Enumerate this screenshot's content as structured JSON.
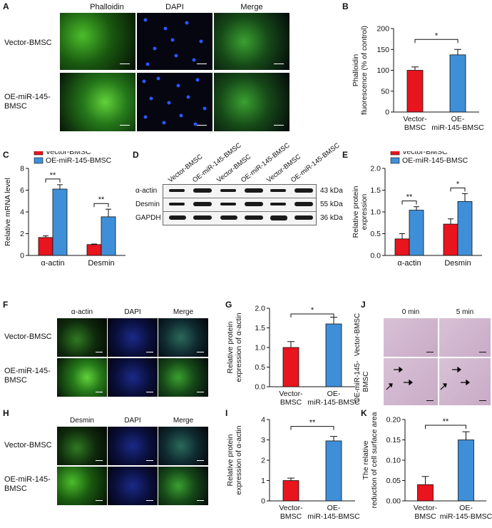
{
  "panels": {
    "A": "A",
    "B": "B",
    "C": "C",
    "D": "D",
    "E": "E",
    "F": "F",
    "G": "G",
    "H": "H",
    "I": "I",
    "J": "J",
    "K": "K"
  },
  "panel_a": {
    "columns": [
      "Phalloidin",
      "DAPI",
      "Merge"
    ],
    "rows": [
      "Vector-BMSC",
      "OE-miR-145-BMSC"
    ]
  },
  "panel_d": {
    "lanes": [
      "Vector-BMSC",
      "OE-miR-145-BMSC",
      "Vector-BMSC",
      "OE-miR-145-BMSC",
      "Vector-BMSC",
      "OE-miR-145-BMSC"
    ],
    "bands": [
      "α-actin",
      "Desmin",
      "GAPDH"
    ],
    "sizes": [
      "43 kDa",
      "55 kDa",
      "36 kDa"
    ]
  },
  "panel_f": {
    "columns": [
      "α-actin",
      "DAPI",
      "Merge"
    ],
    "rows": [
      "Vector-BMSC",
      "OE-miR-145-BMSC"
    ]
  },
  "panel_h": {
    "columns": [
      "Desmin",
      "DAPI",
      "Merge"
    ],
    "rows": [
      "Vector-BMSC",
      "OE-miR-145-BMSC"
    ]
  },
  "panel_j": {
    "columns": [
      "0 min",
      "5 min"
    ],
    "rows": [
      "Vector-BMSC",
      "OE-miR-145-BMSC"
    ]
  },
  "colors": {
    "vector": "#e8141e",
    "oe": "#3f8fd8"
  },
  "chart_data": [
    {
      "id": "B",
      "type": "bar",
      "categories": [
        "Vector-BMSC",
        "OE-miR-145-BMSC"
      ],
      "values": [
        100,
        137
      ],
      "errors": [
        8,
        13
      ],
      "ylabel": "Phalloidin fluorescence (% of control)",
      "ylim": [
        0,
        200
      ],
      "yticks": [
        0,
        50,
        100,
        150,
        200
      ],
      "significance": "*"
    },
    {
      "id": "C",
      "type": "bar",
      "categories": [
        "α-actin",
        "Desmin"
      ],
      "series": [
        {
          "name": "Vector-BMSC",
          "values": [
            1.65,
            1.0
          ],
          "errors": [
            0.15,
            0.05
          ]
        },
        {
          "name": "OE-miR-145-BMSC",
          "values": [
            6.1,
            3.55
          ],
          "errors": [
            0.4,
            0.7
          ]
        }
      ],
      "ylabel": "Relative mRNA level",
      "ylim": [
        0,
        8
      ],
      "yticks": [
        0,
        2,
        4,
        6,
        8
      ],
      "significance": [
        "**",
        "**"
      ],
      "legend": "top-left"
    },
    {
      "id": "E",
      "type": "bar",
      "categories": [
        "α-actin",
        "Desmin"
      ],
      "series": [
        {
          "name": "Vector-BMSC",
          "values": [
            0.38,
            0.72
          ],
          "errors": [
            0.12,
            0.12
          ]
        },
        {
          "name": "OE-miR-145-BMSC",
          "values": [
            1.04,
            1.24
          ],
          "errors": [
            0.08,
            0.18
          ]
        }
      ],
      "ylabel": "Relative protein expression",
      "ylim": [
        0,
        2.0
      ],
      "yticks": [
        0,
        0.5,
        1.0,
        1.5,
        2.0
      ],
      "significance": [
        "**",
        "*"
      ],
      "legend": "top-left"
    },
    {
      "id": "G",
      "type": "bar",
      "categories": [
        "Vector-BMSC",
        "OE-miR-145-BMSC"
      ],
      "values": [
        1.0,
        1.6
      ],
      "errors": [
        0.15,
        0.17
      ],
      "ylabel": "Relative protein expression of α-actin",
      "ylim": [
        0,
        2.0
      ],
      "yticks": [
        0,
        0.5,
        1.0,
        1.5,
        2.0
      ],
      "significance": "*"
    },
    {
      "id": "I",
      "type": "bar",
      "categories": [
        "Vector-BMSC",
        "OE-miR-145-BMSC"
      ],
      "values": [
        1.0,
        2.95
      ],
      "errors": [
        0.12,
        0.22
      ],
      "ylabel": "Relative protein expression of α-actin",
      "ylim": [
        0,
        4
      ],
      "yticks": [
        0,
        1,
        2,
        3,
        4
      ],
      "significance": "**"
    },
    {
      "id": "K",
      "type": "bar",
      "categories": [
        "Vector-BMSC",
        "OE-miR-145-BMSC"
      ],
      "values": [
        0.04,
        0.15
      ],
      "errors": [
        0.02,
        0.02
      ],
      "ylabel": "The relative reduction of cell surface area",
      "ylim": [
        0,
        0.2
      ],
      "yticks": [
        0,
        0.05,
        0.1,
        0.15,
        0.2
      ],
      "significance": "**"
    }
  ]
}
